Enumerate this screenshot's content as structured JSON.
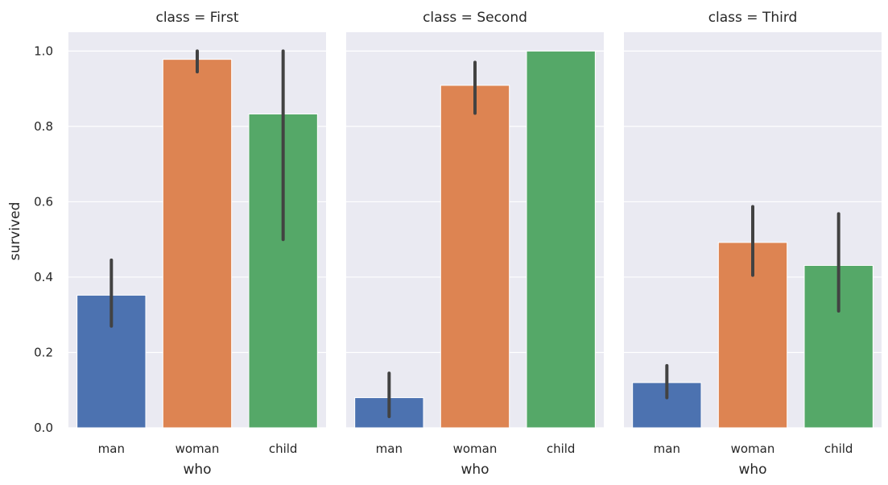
{
  "chart_data": {
    "type": "bar",
    "ylabel": "survived",
    "xlabel": "who",
    "ylim": [
      0,
      1.05
    ],
    "yticks": [
      "0.0",
      "0.2",
      "0.4",
      "0.6",
      "0.8",
      "1.0"
    ],
    "ytick_values": [
      0,
      0.2,
      0.4,
      0.6,
      0.8,
      1.0
    ],
    "categories": [
      "man",
      "woman",
      "child"
    ],
    "colors": [
      "#4c72b0",
      "#dd8452",
      "#55a868"
    ],
    "grid": true,
    "panels": [
      {
        "title": "class = First",
        "values": [
          0.352,
          0.978,
          0.833
        ],
        "ci": [
          [
            0.27,
            0.445
          ],
          [
            0.945,
            1.0
          ],
          [
            0.5,
            1.0
          ]
        ]
      },
      {
        "title": "class = Second",
        "values": [
          0.08,
          0.909,
          1.0
        ],
        "ci": [
          [
            0.03,
            0.145
          ],
          [
            0.835,
            0.97
          ],
          [
            1.0,
            1.0
          ]
        ]
      },
      {
        "title": "class = Third",
        "values": [
          0.12,
          0.492,
          0.431
        ],
        "ci": [
          [
            0.08,
            0.165
          ],
          [
            0.405,
            0.587
          ],
          [
            0.31,
            0.568
          ]
        ]
      }
    ]
  }
}
